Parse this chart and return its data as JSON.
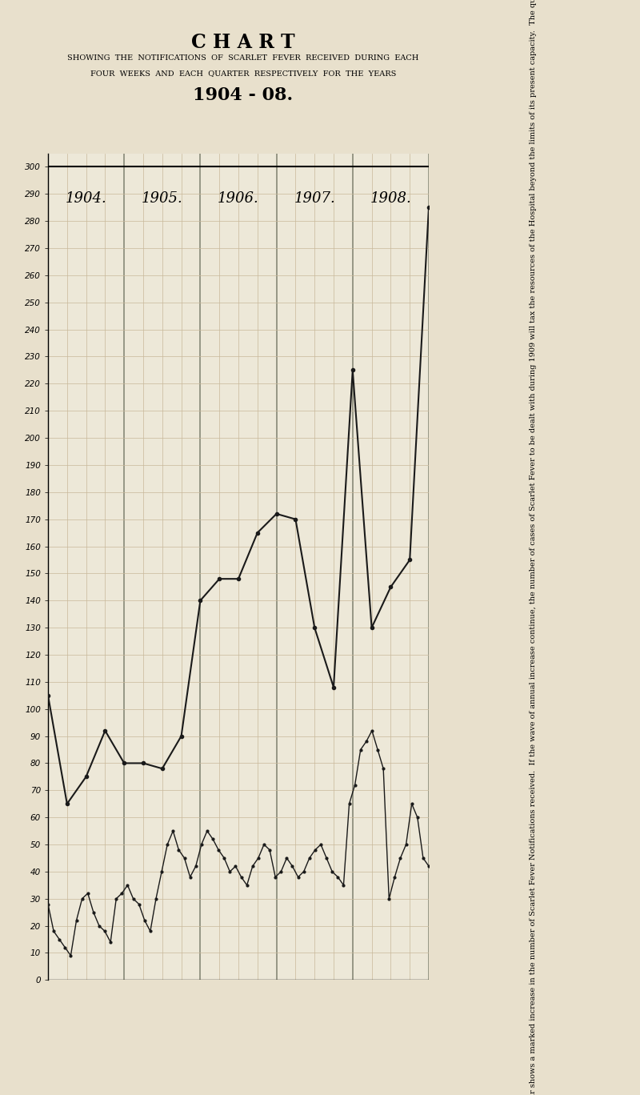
{
  "title_main": "C H A R T",
  "title_sub1": "SHOWING  THE  NOTIFICATIONS  OF  SCARLET  FEVER  RECEIVED  DURING  EACH",
  "title_sub2": "FOUR  WEEKS  AND  EACH  QUARTER  RESPECTIVELY  FOR  THE  YEARS",
  "title_year": "1904 - 08.",
  "background_color": "#e8e0cc",
  "plot_bg_color": "#ede8d8",
  "years": [
    "1904.",
    "1905.",
    "1906.",
    "1907.",
    "1908."
  ],
  "ylim": [
    0,
    305
  ],
  "yticks": [
    0,
    10,
    20,
    30,
    40,
    50,
    60,
    70,
    80,
    90,
    100,
    110,
    120,
    130,
    140,
    150,
    160,
    170,
    180,
    190,
    200,
    210,
    220,
    230,
    240,
    250,
    260,
    270,
    280,
    290,
    300
  ],
  "note_text": "NOTE.—It will be observed from the accompanying diagram that the fourth quarter of each year shows a marked increase in the number of Scarlet Fever Notifications received.  If the wave of annual increase continue, the number of cases of Scarlet Fever to be dealt with during 1909 will tax the resources of the Hospital beyond the limits of its present capacity.  The question of hospital extension in view of these facts becomes one of urgent importance.",
  "quarterly_data": [
    105,
    65,
    75,
    92,
    80,
    80,
    78,
    90,
    140,
    148,
    148,
    165,
    172,
    170,
    130,
    108,
    225,
    130,
    145,
    155,
    285
  ],
  "fourweekly_data": [
    28,
    18,
    15,
    12,
    9,
    22,
    30,
    32,
    25,
    20,
    18,
    14,
    30,
    32,
    35,
    30,
    28,
    22,
    18,
    30,
    40,
    50,
    55,
    48,
    45,
    38,
    42,
    50,
    55,
    52,
    48,
    45,
    40,
    42,
    38,
    35,
    42,
    45,
    50,
    48,
    38,
    40,
    45,
    42,
    38,
    40,
    45,
    48,
    50,
    45,
    40,
    38,
    35,
    65,
    72,
    85,
    88,
    92,
    85,
    78,
    30,
    38,
    45,
    50,
    65,
    60,
    45,
    42
  ],
  "line_color": "#1a1a1a",
  "grid_color": "#c8b89a"
}
